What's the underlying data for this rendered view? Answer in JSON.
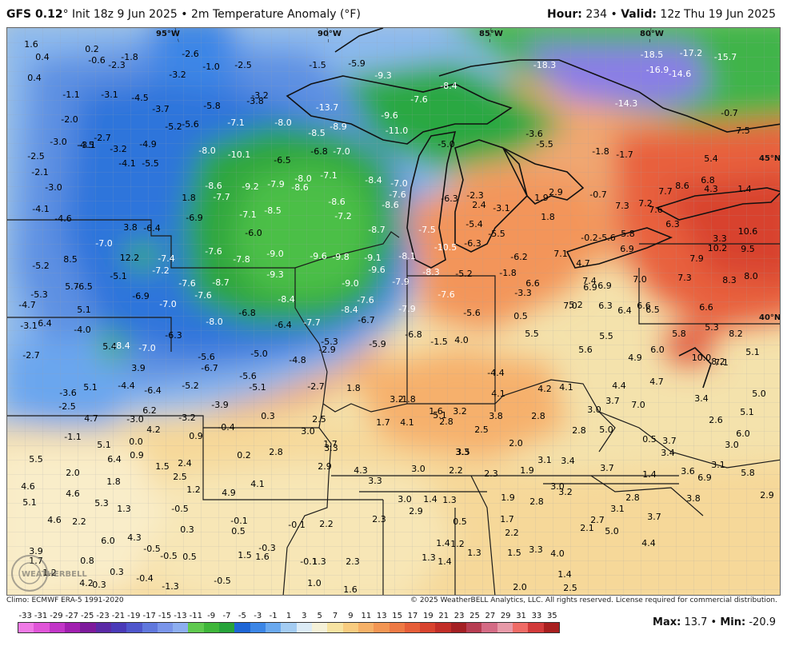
{
  "header": {
    "model": "GFS 0.12",
    "init": "Init 18z 9 Jun 2025",
    "product": "2m Temperature Anomaly (",
    "unit": "F)",
    "hour_label": "Hour:",
    "hour": "234",
    "valid_label": "Valid:",
    "valid": "12z Thu 19 Jun 2025"
  },
  "map": {
    "grid_labels": [
      "95°W",
      "90°W",
      "85°W",
      "80°W",
      "45°N",
      "40°N"
    ],
    "watermark": "WEATHERBELL",
    "values": [
      "1.6",
      "0.4",
      "0.4",
      "-1.1",
      "-2.0",
      "-3.0",
      "-2.5",
      "-2.1",
      "-3.0",
      "-4.1",
      "-4.6",
      "-5.2",
      "-5.3",
      "-4.7",
      "-3.1",
      "-2.7",
      "-3.6",
      "-2.5",
      "-1.1",
      "0.2",
      "-0.6",
      "-2.3",
      "-1.8",
      "-2.6",
      "-1.0",
      "-2.5",
      "-1.5",
      "-5.9",
      "-7.6",
      "-8.4",
      "-18.3",
      "-18.5",
      "-17.2",
      "-15.7",
      "-16.9",
      "-14.6",
      "-3.2",
      "-5.8",
      "-3.8",
      "-3.2",
      "-3.1",
      "-4.5",
      "-3.7",
      "-5.2",
      "-5.6",
      "-7.1",
      "-8.0",
      "-8.5",
      "-8.9",
      "-9.3",
      "-13.7",
      "-9.6",
      "-14.3",
      "-0.7",
      "-4.9",
      "-4.5",
      "-2.7",
      "-3.1",
      "-3.2",
      "-4.1",
      "-5.5",
      "-8.0",
      "-10.1",
      "-6.5",
      "-6.8",
      "-7.0",
      "-11.0",
      "-5.0",
      "-5.5",
      "-3.6",
      "-1.8",
      "-1.7",
      "-8.6",
      "-7.7",
      "-9.2",
      "-7.9",
      "-8.6",
      "-8.0",
      "-7.1",
      "-8.4",
      "-7.0",
      "-7.6",
      "-6.3",
      "-2.3",
      "2.4",
      "1.9",
      "2.9",
      "-0.7",
      "7.3",
      "7.2",
      "7.7",
      "8.6",
      "6.8",
      "5.4",
      "7.5",
      "1.8",
      "-6.9",
      "-7.1",
      "-8.5",
      "-8.6",
      "-7.2",
      "-8.6",
      "-7.5",
      "-5.4",
      "-5.5",
      "-3.1",
      "1.8",
      "7.6",
      "6.3",
      "4.3",
      "1.4",
      "3.8",
      "-6.4",
      "-7.0",
      "-6.0",
      "-8.7",
      "-10.5",
      "-6.3",
      "-5.6",
      "-0.2",
      "5.8",
      "3.3",
      "10.6",
      "10.2",
      "9.5",
      "12.2",
      "-7.4",
      "-7.6",
      "-7.8",
      "-9.0",
      "-9.6",
      "-9.8",
      "-9.1",
      "-8.1",
      "-6.2",
      "7.1",
      "4.7",
      "6.9",
      "7.9",
      "8.5",
      "-5.1",
      "-7.2",
      "-7.6",
      "-8.7",
      "-9.3",
      "-9.6",
      "-7.9",
      "-8.3",
      "-5.2",
      "-1.8",
      "6.6",
      "7.4",
      "7.0",
      "7.3",
      "8.3",
      "8.0",
      "5.7",
      "-6.5",
      "-6.9",
      "-7.6",
      "-8.4",
      "-9.0",
      "-7.6",
      "-3.3",
      "6.9",
      "6.9",
      "7.0",
      "6.6",
      "5.1",
      "-7.0",
      "-8.0",
      "-6.8",
      "-8.4",
      "-7.6",
      "-7.9",
      "-5.6",
      "5.2",
      "6.3",
      "6.4",
      "6.6",
      "6.5",
      "6.4",
      "-4.0",
      "-7.0",
      "-6.3",
      "-6.4",
      "-7.7",
      "-6.7",
      "-6.8",
      "0.5",
      "5.5",
      "5.5",
      "5.8",
      "5.3",
      "8.2",
      "5.4",
      "-8.4",
      "-5.6",
      "-5.0",
      "-5.3",
      "-5.9",
      "-1.5",
      "4.0",
      "5.6",
      "4.9",
      "6.0",
      "10.0",
      "8.2",
      "5.1",
      "3.9",
      "-6.7",
      "-5.6",
      "-4.8",
      "-2.9",
      "-4.4",
      "4.7",
      "7.1",
      "5.1",
      "-4.4",
      "-6.4",
      "-5.2",
      "-5.1",
      "-2.7",
      "1.8",
      "3.2",
      "4.1",
      "4.2",
      "4.1",
      "4.4",
      "5.0",
      "6.2",
      "-3.9",
      "-1.8",
      "5.1",
      "3.7",
      "7.0",
      "3.4",
      "5.1",
      "4.7",
      "-3.0",
      "-3.2",
      "0.3",
      "2.5",
      "1.6",
      "3.2",
      "3.8",
      "2.8",
      "3.0",
      "2.6",
      "4.2",
      "-0.4",
      "1.7",
      "4.1",
      "2.8",
      "2.5",
      "2.8",
      "5.0",
      "6.0",
      "5.1",
      "0.0",
      "0.9",
      "3.0",
      "1.7",
      "3.5",
      "2.0",
      "0.5",
      "3.7",
      "3.0",
      "6.4",
      "0.9",
      "0.2",
      "2.8",
      "3.3",
      "3.3",
      "3.1",
      "3.4",
      "3.4",
      "3.1",
      "5.5",
      "2.0",
      "1.5",
      "2.4",
      "2.5",
      "2.9",
      "4.3",
      "3.0",
      "2.2",
      "2.3",
      "1.9",
      "3.7",
      "1.4",
      "3.6",
      "6.9",
      "5.8",
      "4.6",
      "4.6",
      "1.8",
      "1.2",
      "4.9",
      "4.1",
      "3.3",
      "3.0",
      "1.4",
      "1.3",
      "1.9",
      "2.8",
      "3.0",
      "3.2",
      "2.8",
      "3.8",
      "5.1",
      "5.3",
      "1.3",
      "-0.5",
      "0.3",
      "-0.1",
      "2.2",
      "2.9",
      "0.5",
      "1.7",
      "2.7",
      "3.1",
      "3.7",
      "2.9",
      "4.6",
      "2.2",
      "0.5",
      "-0.1",
      "2.3",
      "2.2",
      "2.1",
      "5.0",
      "4.4",
      "6.0",
      "4.3",
      "-0.5",
      "-0.3",
      "1.5",
      "1.6",
      "1.3",
      "2.3",
      "1.4",
      "1.2",
      "1.3",
      "1.5",
      "3.3",
      "4.0",
      "3.9",
      "1.7",
      "1.2",
      "0.8",
      "0.3",
      "-0.5",
      "0.5",
      "-0.1",
      "1.3",
      "1.4",
      "1.4",
      "4.2",
      "0.3",
      "-0.4",
      "-1.3",
      "-0.5",
      "1.0",
      "1.6",
      "2.0",
      "2.5",
      "5.1"
    ]
  },
  "footer": {
    "climo": "Climo: ECMWF ERA-5 1991-2020",
    "copyright": "© 2025 WeatherBELL Analytics, LLC. All rights reserved. License required for commercial distribution."
  },
  "scale": {
    "ticks": [
      "-33",
      "-31",
      "-29",
      "-27",
      "-25",
      "-23",
      "-21",
      "-19",
      "-17",
      "-15",
      "-13",
      "-11",
      "-9",
      "-7",
      "-5",
      "-3",
      "-1",
      "1",
      "3",
      "5",
      "7",
      "9",
      "11",
      "13",
      "15",
      "17",
      "19",
      "21",
      "23",
      "25",
      "27",
      "29",
      "31",
      "33",
      "35"
    ],
    "colors": [
      "#f07be6",
      "#e055d8",
      "#c236c8",
      "#a11fb0",
      "#7d1a9c",
      "#5a2aa6",
      "#4a3ab8",
      "#4f56cc",
      "#6078dd",
      "#7a95ea",
      "#8daef0",
      "#5fc94f",
      "#3fb63a",
      "#27a33a",
      "#1e66d6",
      "#3c86e6",
      "#6aa9ef",
      "#a4ccf2",
      "#dcebf6",
      "#f5f1d8",
      "#f7e3a2",
      "#f8cc80",
      "#f6b168",
      "#f39654",
      "#ee7a45",
      "#e65e39",
      "#d8432f",
      "#c22e28",
      "#a42024",
      "#b73d52",
      "#d46b85",
      "#e79aa8",
      "#ef6b66",
      "#d23a3a",
      "#a81f1f"
    ]
  },
  "maxmin": {
    "max_label": "Max:",
    "max": "13.7",
    "min_label": "Min:",
    "min": "-20.9"
  }
}
